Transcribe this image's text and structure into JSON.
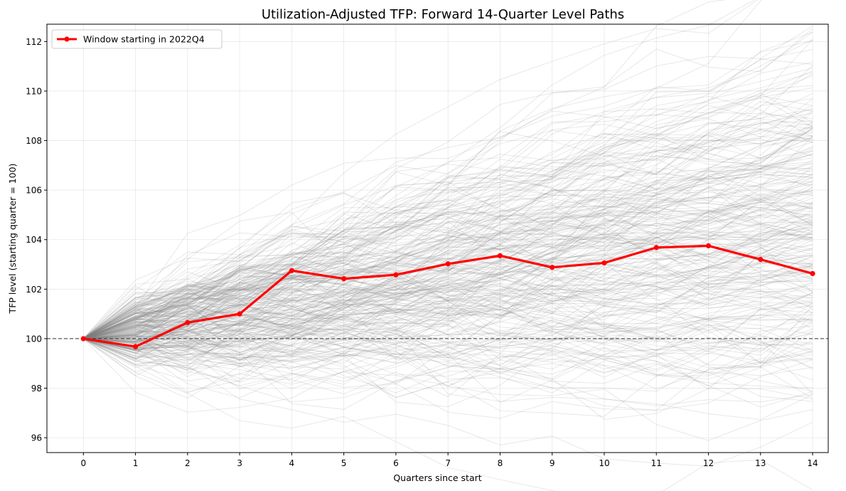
{
  "chart_data": {
    "type": "line",
    "title": "Utilization-Adjusted TFP: Forward 14-Quarter Level Paths",
    "xlabel": "Quarters since start",
    "ylabel": "TFP level (starting quarter = 100)",
    "x": [
      0,
      1,
      2,
      3,
      4,
      5,
      6,
      7,
      8,
      9,
      10,
      11,
      12,
      13,
      14
    ],
    "xlim": [
      -0.7,
      14.3
    ],
    "ylim": [
      95.4,
      112.7
    ],
    "yticks": [
      96,
      98,
      100,
      102,
      104,
      106,
      108,
      110,
      112
    ],
    "grid": true,
    "reference_line": {
      "y": 100,
      "style": "dashed"
    },
    "legend": {
      "placement": "top-left",
      "entries": [
        "Window starting in 2022Q4"
      ]
    },
    "highlight_series": {
      "name": "Window starting in 2022Q4",
      "color": "#ff0000",
      "values": [
        100.0,
        99.68,
        100.65,
        101.0,
        102.75,
        102.42,
        102.58,
        103.02,
        103.35,
        102.88,
        103.06,
        103.68,
        103.75,
        103.2,
        102.63
      ]
    },
    "background_series": {
      "color": "#808080",
      "count": 280,
      "start_value": 100,
      "typical_end_range": [
        96.3,
        111.9
      ],
      "note_drift_per_quarter": 0.35,
      "note_vol_per_quarter": 0.75
    }
  }
}
